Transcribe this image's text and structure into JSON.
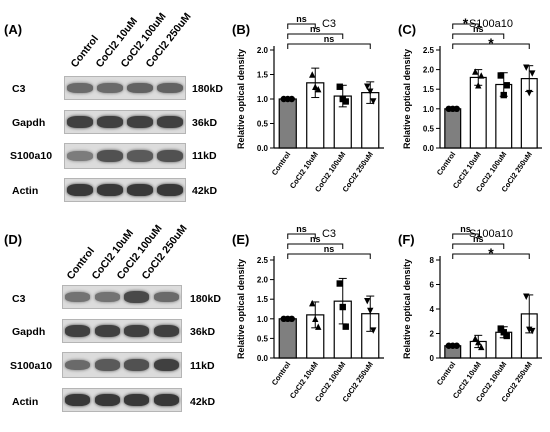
{
  "panels": {
    "A": "(A)",
    "B": "(B)",
    "C": "(C)",
    "D": "(D)",
    "E": "(E)",
    "F": "(F)"
  },
  "blots": [
    {
      "id": "A",
      "lanes": [
        "Control",
        "CoCl2 10uM",
        "CoCl2 100uM",
        "CoCl2 250uM"
      ],
      "rows": [
        {
          "protein": "C3",
          "size": "180kD",
          "intensity": [
            0.55,
            0.55,
            0.6,
            0.6
          ]
        },
        {
          "protein": "Gapdh",
          "size": "36kD",
          "intensity": [
            0.8,
            0.8,
            0.8,
            0.8
          ]
        },
        {
          "protein": "S100a10",
          "size": "11kD",
          "intensity": [
            0.45,
            0.7,
            0.65,
            0.7
          ]
        },
        {
          "protein": "Actin",
          "size": "42kD",
          "intensity": [
            0.85,
            0.85,
            0.85,
            0.85
          ]
        }
      ]
    },
    {
      "id": "D",
      "lanes": [
        "Control",
        "CoCl2 10uM",
        "CoCl2 100uM",
        "CoCl2 250uM"
      ],
      "rows": [
        {
          "protein": "C3",
          "size": "180kD",
          "intensity": [
            0.5,
            0.5,
            0.75,
            0.55
          ]
        },
        {
          "protein": "Gapdh",
          "size": "36kD",
          "intensity": [
            0.8,
            0.8,
            0.8,
            0.8
          ]
        },
        {
          "protein": "S100a10",
          "size": "11kD",
          "intensity": [
            0.55,
            0.65,
            0.7,
            0.8
          ]
        },
        {
          "protein": "Actin",
          "size": "42kD",
          "intensity": [
            0.85,
            0.85,
            0.85,
            0.85
          ]
        }
      ]
    }
  ],
  "chart_data": [
    {
      "type": "bar",
      "panel": "B",
      "title": "C3",
      "ylabel": "Relative optical density",
      "categories": [
        "Control",
        "CoCl2 10uM",
        "CoCl2 100uM",
        "CoCl2 250uM"
      ],
      "values": [
        1.0,
        1.33,
        1.06,
        1.13
      ],
      "errors": [
        0.0,
        0.3,
        0.22,
        0.22
      ],
      "points": [
        [
          1.0,
          1.0,
          1.0
        ],
        [
          1.5,
          1.25,
          1.2
        ],
        [
          1.25,
          1.0,
          0.95
        ],
        [
          1.25,
          1.15,
          0.95
        ]
      ],
      "ylim": [
        0,
        2.0
      ],
      "yticks": [
        "0.0",
        "0.5",
        "1.0",
        "1.5",
        "2.0"
      ],
      "bar_colors": [
        "#7f7f7f",
        "#ffffff",
        "#ffffff",
        "#ffffff"
      ],
      "comparisons": [
        {
          "to": 1,
          "label": "ns"
        },
        {
          "to": 2,
          "label": "ns"
        },
        {
          "to": 3,
          "label": "ns"
        }
      ]
    },
    {
      "type": "bar",
      "panel": "C",
      "title": "S100a10",
      "ylabel": "Relative optical density",
      "categories": [
        "Control",
        "CoCl2 10uM",
        "CoCl2 100uM",
        "CoCl2 250uM"
      ],
      "values": [
        1.0,
        1.8,
        1.62,
        1.77
      ],
      "errors": [
        0.0,
        0.2,
        0.3,
        0.33
      ],
      "points": [
        [
          1.0,
          1.0,
          1.0
        ],
        [
          1.95,
          1.6,
          1.85
        ],
        [
          1.85,
          1.35,
          1.6
        ],
        [
          2.05,
          1.4,
          1.9
        ]
      ],
      "ylim": [
        0,
        2.5
      ],
      "yticks": [
        "0.0",
        "0.5",
        "1.0",
        "1.5",
        "2.0",
        "2.5"
      ],
      "bar_colors": [
        "#7f7f7f",
        "#ffffff",
        "#ffffff",
        "#ffffff"
      ],
      "comparisons": [
        {
          "to": 1,
          "label": "*"
        },
        {
          "to": 2,
          "label": "ns"
        },
        {
          "to": 3,
          "label": "*"
        }
      ]
    },
    {
      "type": "bar",
      "panel": "E",
      "title": "C3",
      "ylabel": "Relative optical density",
      "categories": [
        "Control",
        "CoCl2 10uM",
        "CoCl2 100uM",
        "CoCl2 250uM"
      ],
      "values": [
        1.0,
        1.1,
        1.45,
        1.13
      ],
      "errors": [
        0.0,
        0.33,
        0.58,
        0.45
      ],
      "points": [
        [
          1.0,
          1.0,
          1.0
        ],
        [
          1.4,
          1.0,
          0.8
        ],
        [
          1.9,
          1.3,
          0.8
        ],
        [
          1.45,
          1.2,
          0.7
        ]
      ],
      "ylim": [
        0,
        2.5
      ],
      "yticks": [
        "0.0",
        "0.5",
        "1.0",
        "1.5",
        "2.0",
        "2.5"
      ],
      "bar_colors": [
        "#7f7f7f",
        "#ffffff",
        "#ffffff",
        "#ffffff"
      ],
      "comparisons": [
        {
          "to": 1,
          "label": "ns"
        },
        {
          "to": 2,
          "label": "ns"
        },
        {
          "to": 3,
          "label": "ns"
        }
      ]
    },
    {
      "type": "bar",
      "panel": "F",
      "title": "S100a10",
      "ylabel": "Relative optical density",
      "categories": [
        "Control",
        "CoCl2 10uM",
        "CoCl2 100uM",
        "CoCl2 250uM"
      ],
      "values": [
        1.0,
        1.35,
        2.1,
        3.6
      ],
      "errors": [
        0.0,
        0.5,
        0.45,
        1.55
      ],
      "points": [
        [
          1.0,
          1.0,
          1.0
        ],
        [
          1.6,
          1.3,
          0.9
        ],
        [
          2.4,
          2.1,
          1.8
        ],
        [
          5.0,
          2.3,
          2.2
        ]
      ],
      "ylim": [
        0,
        8
      ],
      "yticks": [
        "0",
        "2",
        "4",
        "6",
        "8"
      ],
      "bar_colors": [
        "#7f7f7f",
        "#ffffff",
        "#ffffff",
        "#ffffff"
      ],
      "comparisons": [
        {
          "to": 1,
          "label": "ns"
        },
        {
          "to": 2,
          "label": "ns"
        },
        {
          "to": 3,
          "label": "*"
        }
      ]
    }
  ]
}
